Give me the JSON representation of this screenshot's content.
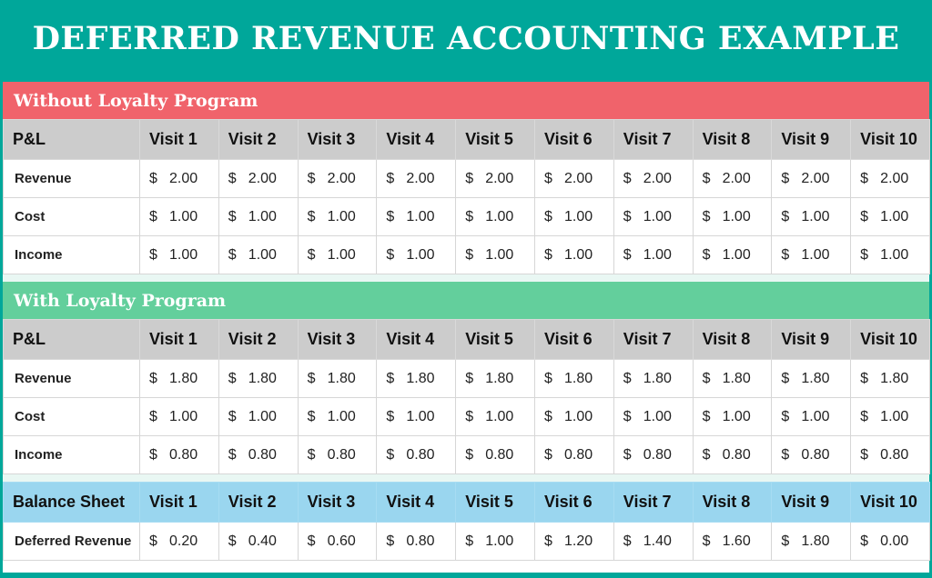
{
  "title": "DEFERRED REVENUE ACCOUNTING EXAMPLE",
  "colors": {
    "background": "#00a79a",
    "banner_red": "#f0636b",
    "banner_green": "#63cf9c",
    "header_grey": "#cccccc",
    "header_blue": "#9ad6ef"
  },
  "sections": [
    {
      "banner": "Without Loyalty Program",
      "header": [
        "P&L",
        "Visit 1",
        "Visit 2",
        "Visit 3",
        "Visit 4",
        "Visit 5",
        "Visit 6",
        "Visit 7",
        "Visit 8",
        "Visit 9",
        "Visit 10"
      ],
      "rows": [
        {
          "label": "Revenue",
          "currency": "$",
          "values": [
            "2.00",
            "2.00",
            "2.00",
            "2.00",
            "2.00",
            "2.00",
            "2.00",
            "2.00",
            "2.00",
            "2.00"
          ]
        },
        {
          "label": "Cost",
          "currency": "$",
          "values": [
            "1.00",
            "1.00",
            "1.00",
            "1.00",
            "1.00",
            "1.00",
            "1.00",
            "1.00",
            "1.00",
            "1.00"
          ]
        },
        {
          "label": "Income",
          "currency": "$",
          "values": [
            "1.00",
            "1.00",
            "1.00",
            "1.00",
            "1.00",
            "1.00",
            "1.00",
            "1.00",
            "1.00",
            "1.00"
          ]
        }
      ]
    },
    {
      "banner": "With Loyalty Program",
      "header": [
        "P&L",
        "Visit 1",
        "Visit 2",
        "Visit 3",
        "Visit 4",
        "Visit 5",
        "Visit 6",
        "Visit 7",
        "Visit 8",
        "Visit 9",
        "Visit 10"
      ],
      "rows": [
        {
          "label": "Revenue",
          "currency": "$",
          "values": [
            "1.80",
            "1.80",
            "1.80",
            "1.80",
            "1.80",
            "1.80",
            "1.80",
            "1.80",
            "1.80",
            "1.80"
          ]
        },
        {
          "label": "Cost",
          "currency": "$",
          "values": [
            "1.00",
            "1.00",
            "1.00",
            "1.00",
            "1.00",
            "1.00",
            "1.00",
            "1.00",
            "1.00",
            "1.00"
          ]
        },
        {
          "label": "Income",
          "currency": "$",
          "values": [
            "0.80",
            "0.80",
            "0.80",
            "0.80",
            "0.80",
            "0.80",
            "0.80",
            "0.80",
            "0.80",
            "0.80"
          ]
        }
      ]
    }
  ],
  "balance_sheet": {
    "header": [
      "Balance Sheet",
      "Visit 1",
      "Visit 2",
      "Visit 3",
      "Visit 4",
      "Visit 5",
      "Visit 6",
      "Visit 7",
      "Visit 8",
      "Visit 9",
      "Visit 10"
    ],
    "rows": [
      {
        "label": "Deferred Revenue",
        "currency": "$",
        "values": [
          "0.20",
          "0.40",
          "0.60",
          "0.80",
          "1.00",
          "1.20",
          "1.40",
          "1.60",
          "1.80",
          "0.00"
        ]
      }
    ]
  }
}
